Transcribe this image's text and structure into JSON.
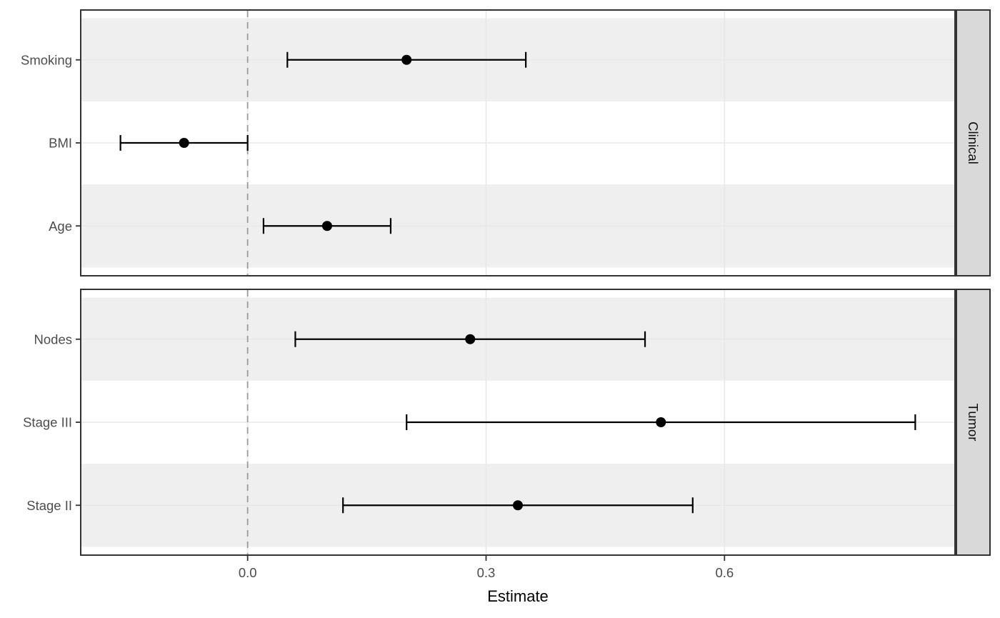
{
  "chart_data": {
    "type": "forest",
    "xlabel": "Estimate",
    "x_axis": {
      "xlim": [
        -0.21,
        0.89
      ],
      "ticks": [
        0.0,
        0.3,
        0.6
      ],
      "tick_labels": [
        "0.0",
        "0.3",
        "0.6"
      ],
      "zero_line": 0.0,
      "grid": "major-vertical-and-row-lines"
    },
    "facets": [
      {
        "label": "Clinical",
        "rows": [
          {
            "label": "Smoking",
            "estimate": 0.2,
            "ci_low": 0.05,
            "ci_high": 0.35
          },
          {
            "label": "BMI",
            "estimate": -0.08,
            "ci_low": -0.16,
            "ci_high": 0.0
          },
          {
            "label": "Age",
            "estimate": 0.1,
            "ci_low": 0.02,
            "ci_high": 0.18
          }
        ]
      },
      {
        "label": "Tumor",
        "rows": [
          {
            "label": "Nodes",
            "estimate": 0.28,
            "ci_low": 0.06,
            "ci_high": 0.5
          },
          {
            "label": "Stage III",
            "estimate": 0.52,
            "ci_low": 0.2,
            "ci_high": 0.84
          },
          {
            "label": "Stage II",
            "estimate": 0.34,
            "ci_low": 0.12,
            "ci_high": 0.56
          }
        ]
      }
    ],
    "colors": {
      "background": "#ffffff",
      "stripe_band": "#efefef",
      "gridline": "#e8e8e8",
      "zero_line": "#9b9b9b",
      "point": "#000000",
      "error_bar": "#000000",
      "panel_border": "#333333",
      "strip_background": "#d9d9d9",
      "strip_border": "#333333",
      "axis_tick": "#333333",
      "axis_text": "#4d4d4d",
      "axis_title": "#000000",
      "strip_text": "#111111"
    }
  }
}
